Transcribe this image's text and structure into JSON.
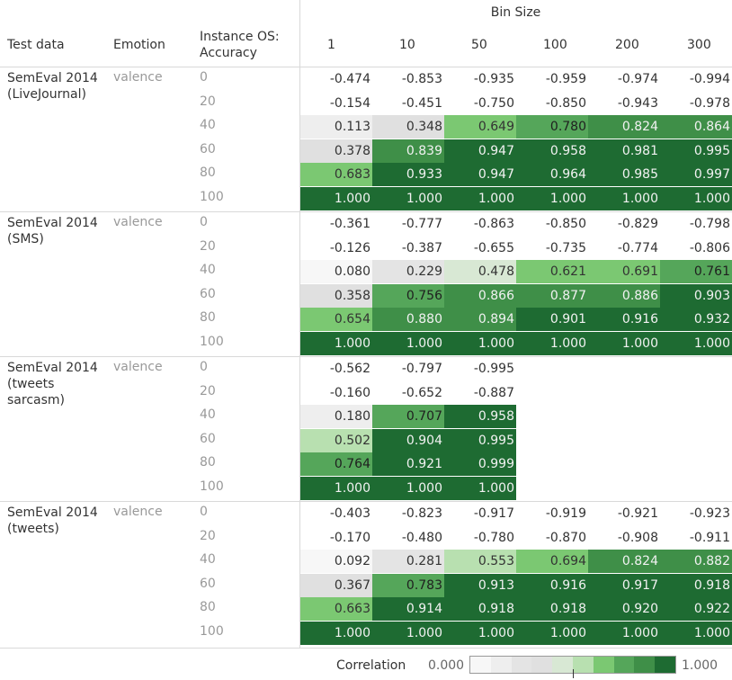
{
  "header": {
    "group_title": "Bin Size",
    "col_test_data": "Test data",
    "col_emotion": "Emotion",
    "col_accuracy": "Instance OS:\nAccuracy"
  },
  "chart_data": {
    "type": "heatmap",
    "color_scale": {
      "min": 0.0,
      "max": 1.0,
      "low_color": "#ffffff",
      "high_color": "#1e6b32"
    },
    "bin_sizes": [
      "1",
      "10",
      "50",
      "100",
      "200",
      "300"
    ],
    "accuracy_levels": [
      "0",
      "20",
      "40",
      "60",
      "80",
      "100"
    ],
    "groups": [
      {
        "test_data": "SemEval 2014 (LiveJournal)",
        "emotion": "valence",
        "rows": [
          [
            "-0.474",
            "-0.853",
            "-0.935",
            "-0.959",
            "-0.974",
            "-0.994"
          ],
          [
            "-0.154",
            "-0.451",
            "-0.750",
            "-0.850",
            "-0.943",
            "-0.978"
          ],
          [
            "0.113",
            "0.348",
            "0.649",
            "0.780",
            "0.824",
            "0.864"
          ],
          [
            "0.378",
            "0.839",
            "0.947",
            "0.958",
            "0.981",
            "0.995"
          ],
          [
            "0.683",
            "0.933",
            "0.947",
            "0.964",
            "0.985",
            "0.997"
          ],
          [
            "1.000",
            "1.000",
            "1.000",
            "1.000",
            "1.000",
            "1.000"
          ]
        ]
      },
      {
        "test_data": "SemEval 2014 (SMS)",
        "emotion": "valence",
        "rows": [
          [
            "-0.361",
            "-0.777",
            "-0.863",
            "-0.850",
            "-0.829",
            "-0.798"
          ],
          [
            "-0.126",
            "-0.387",
            "-0.655",
            "-0.735",
            "-0.774",
            "-0.806"
          ],
          [
            "0.080",
            "0.229",
            "0.478",
            "0.621",
            "0.691",
            "0.761"
          ],
          [
            "0.358",
            "0.756",
            "0.866",
            "0.877",
            "0.886",
            "0.903"
          ],
          [
            "0.654",
            "0.880",
            "0.894",
            "0.901",
            "0.916",
            "0.932"
          ],
          [
            "1.000",
            "1.000",
            "1.000",
            "1.000",
            "1.000",
            "1.000"
          ]
        ]
      },
      {
        "test_data": "SemEval 2014 (tweets sarcasm)",
        "emotion": "valence",
        "rows": [
          [
            "-0.562",
            "-0.797",
            "-0.995",
            "",
            "",
            ""
          ],
          [
            "-0.160",
            "-0.652",
            "-0.887",
            "",
            "",
            ""
          ],
          [
            "0.180",
            "0.707",
            "0.958",
            "",
            "",
            ""
          ],
          [
            "0.502",
            "0.904",
            "0.995",
            "",
            "",
            ""
          ],
          [
            "0.764",
            "0.921",
            "0.999",
            "",
            "",
            ""
          ],
          [
            "1.000",
            "1.000",
            "1.000",
            "",
            "",
            ""
          ]
        ]
      },
      {
        "test_data": "SemEval 2014 (tweets)",
        "emotion": "valence",
        "rows": [
          [
            "-0.403",
            "-0.823",
            "-0.917",
            "-0.919",
            "-0.921",
            "-0.923"
          ],
          [
            "-0.170",
            "-0.480",
            "-0.780",
            "-0.870",
            "-0.908",
            "-0.911"
          ],
          [
            "0.092",
            "0.281",
            "0.553",
            "0.694",
            "0.824",
            "0.882"
          ],
          [
            "0.367",
            "0.783",
            "0.913",
            "0.916",
            "0.917",
            "0.918"
          ],
          [
            "0.663",
            "0.914",
            "0.918",
            "0.918",
            "0.920",
            "0.922"
          ],
          [
            "1.000",
            "1.000",
            "1.000",
            "1.000",
            "1.000",
            "1.000"
          ]
        ]
      }
    ]
  },
  "legend": {
    "title": "Correlation",
    "min_label": "0.000",
    "max_label": "1.000",
    "step_count": 10
  }
}
